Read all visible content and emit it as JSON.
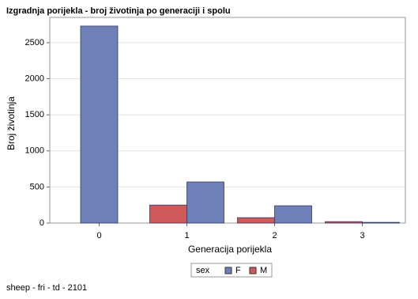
{
  "chart_data": {
    "type": "bar",
    "title": "Izgradnja porijekla - broj životinja po generaciji i spolu",
    "x_label": "Generacija porijekla",
    "y_label": "Broj životinja",
    "categories": [
      "0",
      "1",
      "2",
      "3"
    ],
    "series": [
      {
        "name": "F",
        "color": "#6f7fb8",
        "values": [
          2730,
          570,
          240,
          10
        ]
      },
      {
        "name": "M",
        "color": "#d05a5a",
        "values": [
          null,
          250,
          75,
          20
        ]
      }
    ],
    "legend_title": "sex",
    "ylim": [
      0,
      2850
    ],
    "yticks": [
      0,
      500,
      1000,
      1500,
      2000,
      2500
    ],
    "grid": true,
    "footnote": "sheep - fri - td - 2101"
  }
}
